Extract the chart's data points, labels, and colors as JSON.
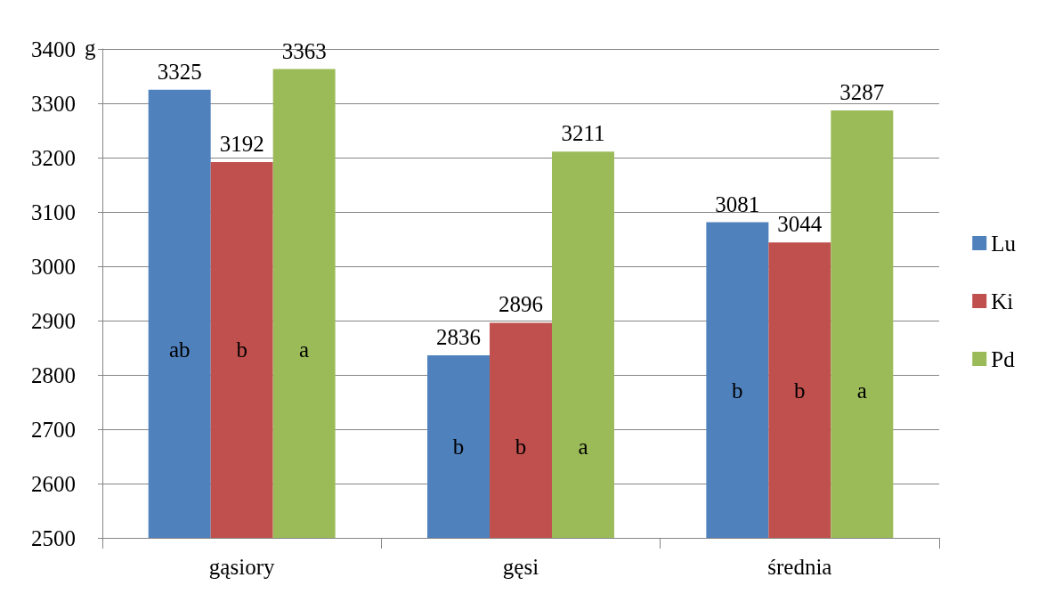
{
  "chart_data": {
    "type": "bar",
    "ylabel": "g",
    "categories": [
      "gąsiory",
      "gęsi",
      "średnia"
    ],
    "series": [
      {
        "name": "Lu",
        "color": "#4f81bd",
        "values": [
          3325,
          2836,
          3081
        ]
      },
      {
        "name": "Ki",
        "color": "#c0504d",
        "values": [
          3192,
          2896,
          3044
        ]
      },
      {
        "name": "Pd",
        "color": "#9bbb59",
        "values": [
          3363,
          3211,
          3287
        ]
      }
    ],
    "ylim": [
      2500,
      3400
    ],
    "yticks": [
      2500,
      2600,
      2700,
      2800,
      2900,
      3000,
      3100,
      3200,
      3300,
      3400
    ],
    "grid": "y",
    "legend": "right",
    "data_labels": true,
    "annotations": [
      "ab",
      "b",
      "a",
      "b",
      "b",
      "a",
      "b",
      "b",
      "a"
    ]
  }
}
